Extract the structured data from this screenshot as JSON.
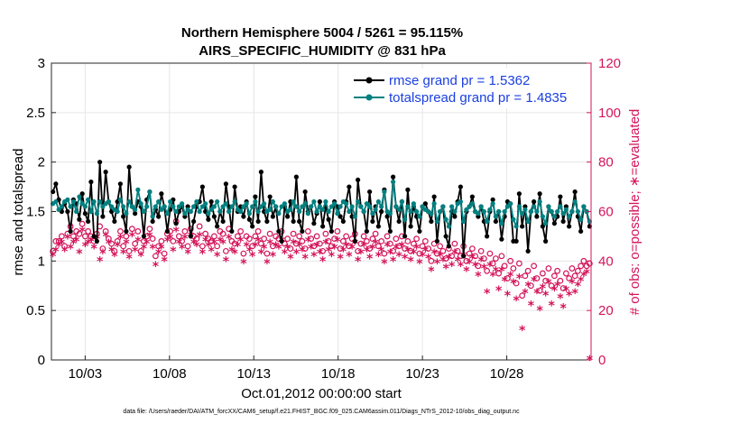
{
  "chart_data": {
    "type": "line",
    "title_line1": "Northern Hemisphere 5004 / 5261 = 95.115%",
    "title_line2": "AIRS_SPECIFIC_HUMIDITY @ 831 hPa",
    "xlabel": "Oct.01,2012 00:00:00 start",
    "ylabel_left": "rmse and totalspread",
    "ylabel_right": "# of obs: o=possible; ∗=evaluated",
    "footer": "data file: /Users/raeder/DAI/ATM_forcXX/CAM6_setup/f.e21.FHIST_BGC.f09_025.CAM6assim.011/Diags_NTrS_2012-10/obs_diag_output.nc",
    "xlim": [
      1,
      33
    ],
    "ylim_left": [
      0,
      3
    ],
    "ylim_right": [
      0,
      120
    ],
    "x_ticks": [
      3,
      8,
      13,
      18,
      23,
      28
    ],
    "x_tick_labels": [
      "10/03",
      "10/08",
      "10/13",
      "10/18",
      "10/23",
      "10/28"
    ],
    "y_ticks_left": [
      "0",
      "0.5",
      "1",
      "1.5",
      "2",
      "2.5",
      "3"
    ],
    "y_ticks_right": [
      "0",
      "20",
      "40",
      "60",
      "80",
      "100",
      "120"
    ],
    "colors": {
      "rmse": "#000000",
      "spread": "#008080",
      "obs": "#d4145a",
      "legend_text": "#1a3fe0"
    },
    "series": [
      {
        "name": "rmse grand pr = 1.5362",
        "values": [
          1.7,
          1.78,
          1.62,
          1.5,
          1.58,
          1.5,
          1.3,
          1.62,
          1.58,
          1.42,
          1.68,
          1.48,
          1.4,
          1.8,
          1.25,
          1.2,
          2.0,
          1.45,
          1.9,
          1.6,
          1.5,
          1.4,
          1.6,
          1.78,
          1.45,
          1.3,
          1.95,
          1.55,
          1.48,
          1.6,
          1.55,
          1.25,
          1.62,
          1.7,
          1.4,
          1.52,
          1.45,
          1.68,
          1.55,
          1.3,
          1.52,
          1.62,
          1.38,
          1.5,
          1.55,
          1.45,
          1.55,
          1.25,
          1.4,
          1.55,
          1.6,
          1.75,
          1.5,
          1.42,
          1.6,
          1.45,
          1.35,
          1.5,
          1.4,
          1.78,
          1.55,
          1.3,
          1.75,
          1.5,
          1.55,
          1.45,
          1.6,
          1.42,
          1.35,
          1.65,
          1.4,
          1.9,
          1.5,
          1.4,
          1.65,
          1.45,
          1.55,
          1.3,
          1.2,
          1.55,
          1.45,
          1.6,
          1.4,
          1.85,
          1.4,
          1.3,
          1.7,
          1.5,
          1.55,
          1.38,
          1.48,
          1.6,
          1.35,
          1.55,
          1.42,
          1.3,
          1.6,
          1.55,
          1.45,
          1.4,
          1.6,
          1.75,
          1.45,
          1.2,
          1.82,
          1.55,
          1.5,
          1.3,
          1.7,
          1.4,
          1.55,
          1.35,
          1.5,
          1.72,
          1.45,
          1.3,
          1.85,
          1.55,
          1.4,
          1.6,
          1.25,
          1.72,
          1.35,
          1.55,
          1.45,
          1.3,
          1.55,
          1.58,
          1.5,
          1.4,
          1.65,
          1.2,
          1.5,
          1.55,
          1.25,
          1.15,
          1.5,
          1.45,
          1.6,
          1.75,
          1.05,
          1.5,
          1.55,
          1.65,
          1.5,
          1.45,
          1.55,
          1.4,
          1.25,
          1.5,
          1.62,
          1.4,
          1.5,
          1.22,
          1.45,
          1.6,
          1.58,
          1.2,
          1.2,
          1.68,
          1.35,
          1.55,
          1.1,
          1.5,
          1.6,
          1.45,
          1.68,
          1.35,
          1.2,
          1.55,
          1.5,
          1.38,
          1.45,
          1.65,
          1.4,
          1.55,
          1.35,
          1.5,
          1.7,
          1.45,
          1.3,
          1.55,
          1.5,
          1.35
        ]
      },
      {
        "name": "totalspread grand pr = 1.4835",
        "values": [
          1.58,
          1.6,
          1.52,
          1.55,
          1.6,
          1.62,
          1.55,
          1.6,
          1.5,
          1.65,
          1.58,
          1.55,
          1.62,
          1.5,
          1.6,
          1.48,
          1.6,
          1.55,
          1.58,
          1.6,
          1.55,
          1.52,
          1.5,
          1.62,
          1.55,
          1.48,
          1.6,
          1.55,
          1.52,
          1.72,
          1.58,
          1.5,
          1.55,
          1.7,
          1.45,
          1.55,
          1.6,
          1.52,
          1.55,
          1.48,
          1.6,
          1.55,
          1.5,
          1.55,
          1.58,
          1.48,
          1.52,
          1.5,
          1.55,
          1.6,
          1.5,
          1.55,
          1.58,
          1.48,
          1.52,
          1.55,
          1.6,
          1.5,
          1.55,
          1.58,
          1.5,
          1.55,
          1.6,
          1.52,
          1.5,
          1.55,
          1.58,
          1.48,
          1.55,
          1.6,
          1.5,
          1.55,
          1.58,
          1.5,
          1.52,
          1.6,
          1.55,
          1.48,
          1.55,
          1.58,
          1.5,
          1.52,
          1.6,
          1.55,
          1.5,
          1.55,
          1.58,
          1.48,
          1.55,
          1.6,
          1.5,
          1.55,
          1.52,
          1.6,
          1.5,
          1.55,
          1.58,
          1.48,
          1.55,
          1.6,
          1.58,
          1.5,
          1.55,
          1.45,
          1.6,
          1.55,
          1.5,
          1.58,
          1.55,
          1.48,
          1.52,
          1.6,
          1.55,
          1.7,
          1.5,
          1.48,
          1.8,
          1.55,
          1.52,
          1.6,
          1.42,
          1.55,
          1.5,
          1.58,
          1.5,
          1.45,
          1.55,
          1.52,
          1.5,
          1.48,
          1.58,
          1.4,
          1.5,
          1.55,
          1.42,
          1.35,
          1.55,
          1.5,
          1.58,
          1.6,
          1.4,
          1.52,
          1.55,
          1.58,
          1.5,
          1.48,
          1.55,
          1.5,
          1.4,
          1.52,
          1.58,
          1.45,
          1.5,
          1.38,
          1.5,
          1.55,
          1.58,
          1.42,
          1.35,
          1.55,
          1.48,
          1.52,
          1.4,
          1.5,
          1.55,
          1.5,
          1.6,
          1.45,
          1.38,
          1.55,
          1.5,
          1.45,
          1.5,
          1.55,
          1.48,
          1.52,
          1.45,
          1.5,
          1.6,
          1.5,
          1.42,
          1.55,
          1.5,
          1.4
        ]
      },
      {
        "name": "obs possible (o)",
        "values": [
          44,
          48,
          48,
          50,
          46,
          51,
          54,
          50,
          52,
          51,
          55,
          50,
          52,
          50,
          48,
          51,
          54,
          45,
          52,
          49,
          47,
          44,
          48,
          52,
          46,
          50,
          44,
          53,
          47,
          52,
          44,
          48,
          50,
          53,
          49,
          42,
          46,
          48,
          43,
          51,
          52,
          48,
          56,
          50,
          48,
          52,
          46,
          53,
          50,
          49,
          54,
          46,
          51,
          49,
          48,
          50,
          46,
          52,
          51,
          44,
          53,
          48,
          47,
          50,
          52,
          43,
          50,
          49,
          46,
          50,
          52,
          47,
          49,
          43,
          51,
          46,
          50,
          49,
          52,
          47,
          49,
          45,
          51,
          47,
          50,
          48,
          45,
          52,
          49,
          46,
          50,
          47,
          44,
          51,
          48,
          46,
          49,
          52,
          45,
          48,
          50,
          46,
          49,
          51,
          44,
          47,
          50,
          48,
          45,
          49,
          51,
          46,
          48,
          43,
          50,
          47,
          44,
          49,
          46,
          50,
          45,
          48,
          44,
          47,
          49,
          43,
          46,
          48,
          45,
          40,
          47,
          43,
          46,
          44,
          41,
          45,
          42,
          47,
          44,
          42,
          46,
          40,
          43,
          45,
          42,
          38,
          44,
          41,
          36,
          43,
          39,
          41,
          35,
          42,
          38,
          33,
          40,
          37,
          31,
          39,
          26,
          34,
          36,
          30,
          38,
          33,
          28,
          35,
          32,
          37,
          30,
          34,
          36,
          32,
          29,
          35,
          33,
          37,
          34,
          36,
          38,
          40,
          38,
          39
        ]
      },
      {
        "name": "obs evaluated (*)",
        "values": [
          42,
          44,
          46,
          47,
          44,
          49,
          45,
          47,
          48,
          43,
          52,
          46,
          47,
          48,
          45,
          49,
          40,
          43,
          50,
          47,
          44,
          42,
          46,
          49,
          43,
          47,
          41,
          50,
          44,
          48,
          42,
          45,
          47,
          50,
          45,
          38,
          43,
          45,
          40,
          48,
          49,
          44,
          52,
          47,
          45,
          49,
          43,
          50,
          47,
          46,
          50,
          43,
          48,
          46,
          44,
          47,
          42,
          48,
          47,
          40,
          49,
          44,
          43,
          46,
          48,
          39,
          46,
          44,
          42,
          46,
          48,
          43,
          45,
          39,
          47,
          42,
          46,
          45,
          48,
          43,
          45,
          41,
          47,
          43,
          46,
          44,
          41,
          48,
          45,
          42,
          46,
          43,
          40,
          47,
          44,
          42,
          45,
          48,
          41,
          44,
          46,
          42,
          45,
          47,
          40,
          43,
          46,
          44,
          41,
          45,
          47,
          42,
          44,
          39,
          46,
          43,
          40,
          45,
          42,
          46,
          41,
          44,
          40,
          43,
          45,
          39,
          42,
          44,
          41,
          36,
          43,
          39,
          42,
          40,
          37,
          41,
          38,
          43,
          40,
          38,
          42,
          36,
          39,
          41,
          38,
          34,
          40,
          37,
          27,
          38,
          34,
          36,
          28,
          36,
          32,
          26,
          34,
          31,
          24,
          33,
          12,
          27,
          30,
          22,
          32,
          27,
          20,
          29,
          26,
          31,
          22,
          28,
          30,
          25,
          21,
          28,
          26,
          31,
          27,
          30,
          32,
          34,
          35,
          0
        ]
      }
    ]
  }
}
